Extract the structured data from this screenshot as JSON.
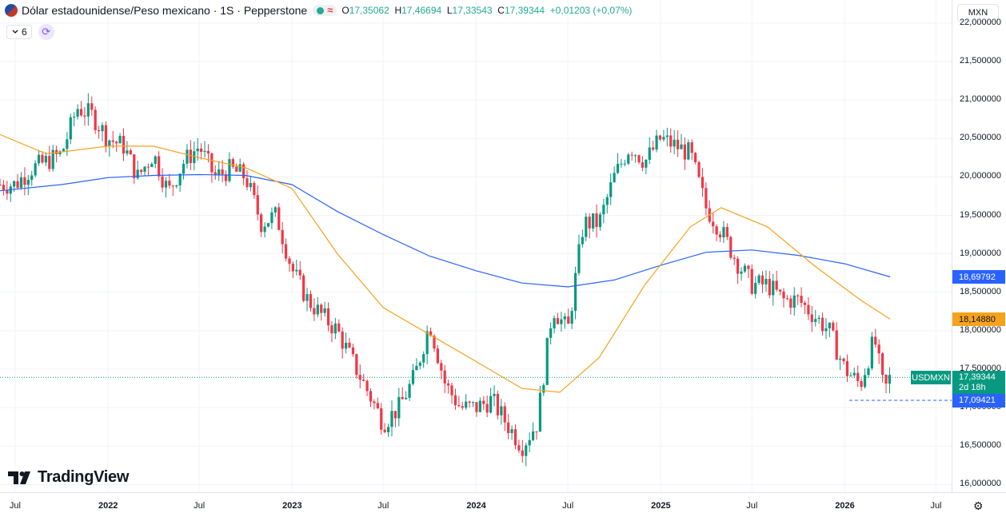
{
  "header": {
    "title": "Dólar estadounidense/Peso mexicano · 1S · Pepperstone",
    "status_icon": "≈",
    "ohlc": [
      {
        "k": "O",
        "v": "17,35062"
      },
      {
        "k": "H",
        "v": "17,46694"
      },
      {
        "k": "L",
        "v": "17,33543"
      },
      {
        "k": "C",
        "v": "17,39344"
      },
      {
        "k": "",
        "v": "+0,01203 (+0,07%)"
      }
    ],
    "indicator_count": "6"
  },
  "currency_button": "MXN",
  "symbol_tag": "USDMXN",
  "price_tags": {
    "blue": "18,69792",
    "orange": "18,14880",
    "last": "17,39344",
    "countdown": "2d 18h",
    "low": "17,09421"
  },
  "logo_text": "TradingView",
  "colors": {
    "up": "#089981",
    "down": "#f23645",
    "ma_long": "#2962ff",
    "ma_short": "#f7a21b"
  },
  "chart_data": {
    "type": "candlestick",
    "symbol": "USDMXN",
    "timeframe": "1S",
    "ylim": [
      15.9,
      22.3
    ],
    "yticks": [
      "22,000000",
      "21,500000",
      "21,000000",
      "20,500000",
      "20,000000",
      "19,500000",
      "19,000000",
      "18,500000",
      "18,000000",
      "17,500000",
      "17,000000",
      "16,500000",
      "16,000000"
    ],
    "ytick_values": [
      22,
      21.5,
      21,
      20.5,
      20,
      19.5,
      19,
      18.5,
      18,
      17.5,
      17,
      16.5,
      16
    ],
    "x_range": [
      "2021-06-01",
      "2026-08-01"
    ],
    "xticks": [
      {
        "label": "Jul",
        "date": "2021-07-01",
        "year": false
      },
      {
        "label": "2022",
        "date": "2022-01-01",
        "year": true
      },
      {
        "label": "Jul",
        "date": "2022-07-01",
        "year": false
      },
      {
        "label": "2023",
        "date": "2023-01-01",
        "year": true
      },
      {
        "label": "Jul",
        "date": "2023-07-01",
        "year": false
      },
      {
        "label": "2024",
        "date": "2024-01-01",
        "year": true
      },
      {
        "label": "Jul",
        "date": "2024-07-01",
        "year": false
      },
      {
        "label": "2025",
        "date": "2025-01-01",
        "year": true
      },
      {
        "label": "Jul",
        "date": "2025-07-01",
        "year": false
      },
      {
        "label": "2026",
        "date": "2026-01-01",
        "year": true
      },
      {
        "label": "Jul",
        "date": "2026-07-01",
        "year": false
      }
    ],
    "close_path": [
      [
        "2021-06-01",
        19.9
      ],
      [
        "2021-07-01",
        19.9
      ],
      [
        "2021-08-01",
        20.1
      ],
      [
        "2021-09-01",
        20.2
      ],
      [
        "2021-10-01",
        20.3
      ],
      [
        "2021-11-01",
        20.9
      ],
      [
        "2021-12-01",
        20.8
      ],
      [
        "2022-01-01",
        20.5
      ],
      [
        "2022-02-01",
        20.4
      ],
      [
        "2022-03-01",
        20.0
      ],
      [
        "2022-04-01",
        20.3
      ],
      [
        "2022-05-01",
        19.8
      ],
      [
        "2022-06-01",
        20.2
      ],
      [
        "2022-07-01",
        20.4
      ],
      [
        "2022-08-01",
        20.0
      ],
      [
        "2022-09-01",
        20.1
      ],
      [
        "2022-10-01",
        20.0
      ],
      [
        "2022-11-01",
        19.4
      ],
      [
        "2022-12-01",
        19.5
      ],
      [
        "2023-01-01",
        18.8
      ],
      [
        "2023-02-01",
        18.4
      ],
      [
        "2023-03-01",
        18.2
      ],
      [
        "2023-04-01",
        18.0
      ],
      [
        "2023-05-01",
        17.6
      ],
      [
        "2023-06-01",
        17.2
      ],
      [
        "2023-07-01",
        16.8
      ],
      [
        "2023-08-01",
        17.0
      ],
      [
        "2023-09-01",
        17.4
      ],
      [
        "2023-10-01",
        18.1
      ],
      [
        "2023-11-01",
        17.3
      ],
      [
        "2023-12-01",
        17.0
      ],
      [
        "2024-01-01",
        17.0
      ],
      [
        "2024-02-01",
        17.1
      ],
      [
        "2024-03-01",
        16.8
      ],
      [
        "2024-04-01",
        16.5
      ],
      [
        "2024-05-01",
        16.8
      ],
      [
        "2024-06-01",
        18.3
      ],
      [
        "2024-07-01",
        18.0
      ],
      [
        "2024-08-01",
        19.4
      ],
      [
        "2024-09-01",
        19.4
      ],
      [
        "2024-10-01",
        20.0
      ],
      [
        "2024-11-01",
        20.4
      ],
      [
        "2024-12-01",
        20.2
      ],
      [
        "2025-01-01",
        20.5
      ],
      [
        "2025-02-01",
        20.4
      ],
      [
        "2025-03-01",
        20.3
      ],
      [
        "2025-04-01",
        19.6
      ],
      [
        "2025-05-01",
        19.3
      ],
      [
        "2025-06-01",
        18.9
      ],
      [
        "2025-07-01",
        18.6
      ],
      [
        "2025-08-01",
        18.6
      ],
      [
        "2025-09-01",
        18.4
      ],
      [
        "2025-10-01",
        18.4
      ],
      [
        "2025-11-01",
        18.2
      ],
      [
        "2025-12-01",
        18.0
      ],
      [
        "2026-01-01",
        17.5
      ],
      [
        "2026-02-01",
        17.3
      ],
      [
        "2026-03-01",
        17.9
      ],
      [
        "2026-03-20",
        17.2
      ],
      [
        "2026-04-01",
        17.39
      ]
    ],
    "series": [
      {
        "name": "",
        "color": "#2962ff",
        "points": [
          [
            "2021-06-01",
            19.82
          ],
          [
            "2021-10-01",
            19.9
          ],
          [
            "2022-01-01",
            19.99
          ],
          [
            "2022-04-01",
            20.02
          ],
          [
            "2022-07-01",
            20.03
          ],
          [
            "2022-10-01",
            20.02
          ],
          [
            "2023-01-01",
            19.9
          ],
          [
            "2023-04-01",
            19.55
          ],
          [
            "2023-07-01",
            19.25
          ],
          [
            "2023-10-01",
            18.97
          ],
          [
            "2024-01-01",
            18.78
          ],
          [
            "2024-04-01",
            18.62
          ],
          [
            "2024-07-01",
            18.57
          ],
          [
            "2024-10-01",
            18.66
          ],
          [
            "2025-01-01",
            18.85
          ],
          [
            "2025-04-01",
            19.02
          ],
          [
            "2025-07-01",
            19.05
          ],
          [
            "2025-10-01",
            18.98
          ],
          [
            "2026-01-01",
            18.87
          ],
          [
            "2026-04-01",
            18.7
          ]
        ]
      },
      {
        "name": "",
        "color": "#f7a21b",
        "points": [
          [
            "2021-06-01",
            20.55
          ],
          [
            "2021-09-01",
            20.3
          ],
          [
            "2022-01-01",
            20.4
          ],
          [
            "2022-04-01",
            20.4
          ],
          [
            "2022-07-01",
            20.25
          ],
          [
            "2022-10-01",
            20.12
          ],
          [
            "2023-01-01",
            19.85
          ],
          [
            "2023-04-01",
            19.0
          ],
          [
            "2023-07-01",
            18.3
          ],
          [
            "2023-10-01",
            17.95
          ],
          [
            "2024-01-01",
            17.6
          ],
          [
            "2024-04-01",
            17.25
          ],
          [
            "2024-06-15",
            17.2
          ],
          [
            "2024-09-01",
            17.65
          ],
          [
            "2024-12-01",
            18.6
          ],
          [
            "2025-03-01",
            19.35
          ],
          [
            "2025-05-01",
            19.6
          ],
          [
            "2025-08-01",
            19.35
          ],
          [
            "2025-11-01",
            18.85
          ],
          [
            "2026-02-01",
            18.4
          ],
          [
            "2026-04-01",
            18.15
          ]
        ]
      }
    ]
  }
}
